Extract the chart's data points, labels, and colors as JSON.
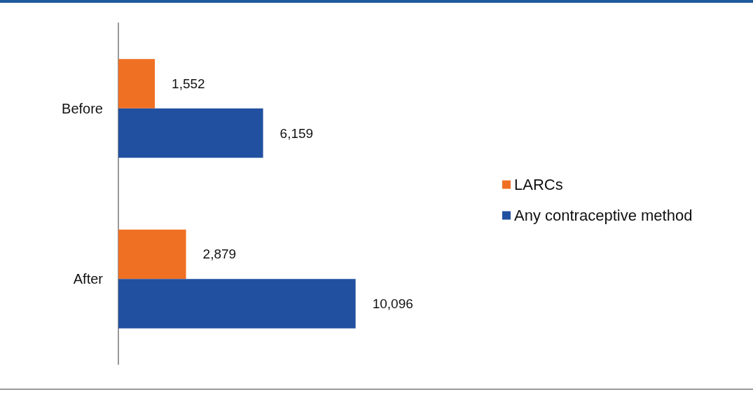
{
  "chart_data": {
    "type": "bar",
    "orientation": "horizontal",
    "categories": [
      "Before",
      "After"
    ],
    "series": [
      {
        "name": "LARCs",
        "color": "#f07023",
        "values": [
          1552,
          2879
        ],
        "value_labels": [
          "1,552",
          "2,879"
        ]
      },
      {
        "name": "Any contraceptive method",
        "color": "#2150a0",
        "values": [
          6159,
          10096
        ],
        "value_labels": [
          "6,159",
          "10,096"
        ]
      }
    ],
    "tick_labels": "y",
    "legend": "right"
  }
}
